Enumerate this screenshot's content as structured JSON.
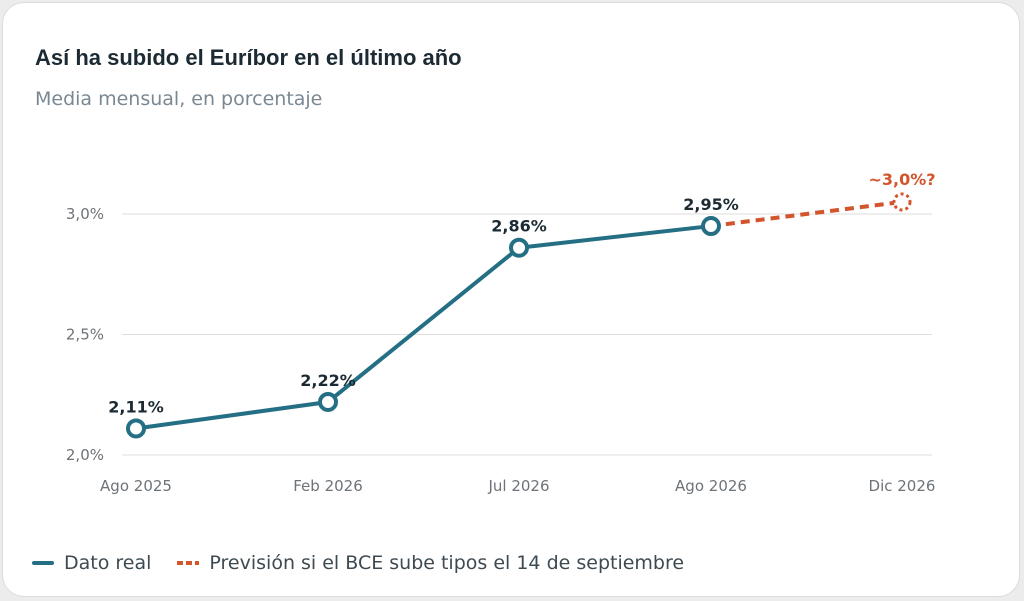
{
  "title": "Así ha subido el Euríbor en el último año",
  "subtitle": "Media mensual, en porcentaje",
  "colors": {
    "real": "#256f85",
    "forecast": "#d2552c",
    "grid": "#dedede"
  },
  "legend": {
    "real_label": "Dato real",
    "forecast_label": "Previsión si el BCE sube tipos el 14 de septiembre"
  },
  "chart_data": {
    "type": "line",
    "categories": [
      "Ago 2025",
      "Feb 2026",
      "Jul 2026",
      "Ago 2026",
      "Dic 2026"
    ],
    "series": [
      {
        "name": "Dato real",
        "values": [
          2.11,
          2.22,
          2.86,
          2.95,
          null
        ],
        "labels": [
          "2,11%",
          "2,22%",
          "2,86%",
          "2,95%",
          ""
        ]
      },
      {
        "name": "Previsión si el BCE sube tipos el 14 de septiembre",
        "values": [
          null,
          null,
          null,
          2.95,
          3.05
        ],
        "labels": [
          "",
          "",
          "",
          "",
          "~3,0%?"
        ]
      }
    ],
    "yticks": [
      2.0,
      2.5,
      3.0
    ],
    "ytick_labels": [
      "2,0%",
      "2,5%",
      "3,0%"
    ],
    "ylim": [
      2.0,
      3.0
    ],
    "grid": true,
    "legend_position": "bottom-left"
  }
}
